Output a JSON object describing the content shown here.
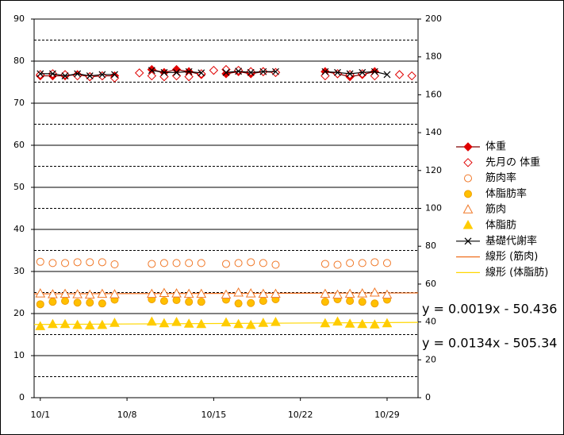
{
  "chart_data": {
    "type": "line",
    "x": [
      1,
      2,
      3,
      4,
      5,
      6,
      7,
      8,
      9,
      10,
      11,
      12,
      13,
      14,
      15,
      16,
      17,
      18,
      19,
      20,
      21,
      22,
      23,
      24,
      25,
      26,
      27,
      28,
      29,
      30,
      31
    ],
    "xlim": [
      0.5,
      31.5
    ],
    "xticks": [
      {
        "value": 1,
        "label": "10/1"
      },
      {
        "value": 8,
        "label": "10/8"
      },
      {
        "value": 15,
        "label": "10/15"
      },
      {
        "value": 22,
        "label": "10/22"
      },
      {
        "value": 29,
        "label": "10/29"
      }
    ],
    "ylim": [
      0,
      90
    ],
    "yticks": [
      0,
      10,
      20,
      30,
      40,
      50,
      60,
      70,
      80,
      90
    ],
    "yminor": [
      5,
      15,
      25,
      35,
      45,
      55,
      65,
      75,
      85
    ],
    "y2lim": [
      0,
      200
    ],
    "y2ticks": [
      0,
      20,
      40,
      60,
      80,
      100,
      120,
      140,
      160,
      180,
      200
    ],
    "grid": true,
    "legend": "right",
    "series": [
      {
        "name": "体重",
        "color": "#e00000",
        "line_color": "#800000",
        "marker": "diamond",
        "filled": true,
        "line": true,
        "values": [
          76.5,
          76.5,
          76.5,
          76.8,
          76.3,
          76.5,
          76.5,
          null,
          null,
          78,
          77.3,
          78,
          77.5,
          76.8,
          null,
          77,
          77.5,
          77,
          77.5,
          77.3,
          null,
          null,
          null,
          77.5,
          77,
          76.3,
          76.8,
          77.5,
          null,
          null,
          null
        ]
      },
      {
        "name": "先月の 体重",
        "color": "#e00000",
        "marker": "diamond",
        "filled": false,
        "line": false,
        "values": [
          76.8,
          77,
          76.8,
          76.5,
          76.3,
          76.5,
          76,
          null,
          77.2,
          76.5,
          76.3,
          76.5,
          76.3,
          77,
          77.8,
          78,
          77.8,
          77.5,
          77.5,
          77.3,
          null,
          null,
          null,
          76.5,
          77,
          76.8,
          77,
          76.5,
          null,
          76.8,
          76.5
        ]
      },
      {
        "name": "筋肉率",
        "color": "#f07828",
        "marker": "circle",
        "filled": false,
        "line": false,
        "values": [
          32.3,
          32,
          32,
          32.2,
          32.2,
          32.2,
          31.7,
          null,
          null,
          31.8,
          32,
          32,
          32,
          32,
          null,
          31.8,
          32,
          32.2,
          32,
          31.6,
          null,
          null,
          null,
          31.8,
          31.6,
          32,
          32,
          32.2,
          32,
          null,
          null
        ]
      },
      {
        "name": "体脂肪率",
        "color": "#ffc000",
        "marker": "circle",
        "filled": true,
        "line": false,
        "values": [
          22.2,
          22.8,
          23,
          22.6,
          22.6,
          22.4,
          23.3,
          null,
          null,
          23.4,
          23,
          23.2,
          22.8,
          22.8,
          null,
          23.3,
          22.4,
          22.5,
          23,
          23.4,
          null,
          null,
          null,
          22.8,
          23.4,
          23,
          22.8,
          22.4,
          23.3,
          null,
          null
        ]
      },
      {
        "name": "筋肉",
        "color": "#f07828",
        "marker": "triangle",
        "filled": false,
        "line": false,
        "values": [
          24.7,
          24.5,
          24.6,
          24.5,
          24.4,
          24.6,
          24.5,
          null,
          null,
          24.6,
          24.8,
          24.7,
          24.6,
          24.6,
          null,
          24.4,
          24.9,
          24.7,
          24.6,
          24.6,
          null,
          null,
          null,
          24.6,
          24.4,
          24.6,
          24.7,
          24.9,
          24.4,
          null,
          null
        ]
      },
      {
        "name": "体脂肪",
        "color": "#ffcc00",
        "marker": "triangle",
        "filled": true,
        "line": false,
        "values": [
          16.9,
          17.4,
          17.4,
          17.2,
          17.1,
          17.2,
          17.7,
          null,
          null,
          18,
          17.6,
          17.9,
          17.5,
          17.4,
          null,
          17.8,
          17.4,
          17.2,
          17.7,
          17.9,
          null,
          null,
          null,
          17.6,
          18,
          17.5,
          17.4,
          17.3,
          17.6,
          null,
          null
        ]
      },
      {
        "name": "基礎代謝率",
        "color": "#000000",
        "line_color": "#000000",
        "marker": "x",
        "filled": false,
        "line": true,
        "values": [
          77,
          77,
          76.5,
          77,
          76.5,
          76.8,
          76.8,
          null,
          null,
          77.8,
          77.3,
          77.3,
          77.5,
          77.2,
          null,
          77.3,
          77.6,
          77.3,
          77.5,
          77.5,
          null,
          null,
          null,
          77.5,
          77.3,
          77,
          77.3,
          77.5,
          76.8,
          null,
          null
        ]
      }
    ],
    "trendlines": [
      {
        "name": "線形 (筋肉)",
        "color": "#f07020",
        "x": [
          0.5,
          31.5
        ],
        "values": [
          24.7,
          24.9
        ]
      },
      {
        "name": "線形 (体脂肪)",
        "color": "#ffd700",
        "x": [
          0.5,
          31.5
        ],
        "values": [
          17.4,
          17.9
        ]
      }
    ],
    "annotations": [
      "y = 0.0019x - 50.436",
      "y = 0.0134x - 505.34"
    ]
  }
}
